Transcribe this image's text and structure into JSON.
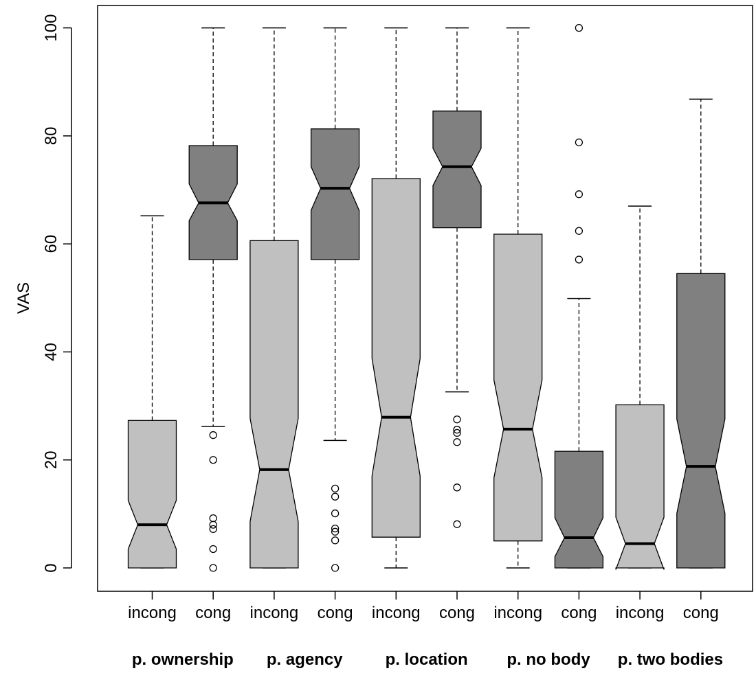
{
  "chart_data": {
    "type": "boxplot",
    "title": "",
    "xlabel": "",
    "ylabel": "VAS",
    "ylim": [
      -4,
      104
    ],
    "yticks": [
      0,
      20,
      40,
      60,
      80,
      100
    ],
    "grid": false,
    "legend": "none",
    "colors": {
      "incong": "#c0c0c0",
      "cong": "#808080"
    },
    "groups": [
      "p. ownership",
      "p. agency",
      "p. location",
      "p. no body",
      "p. two bodies"
    ],
    "boxes": [
      {
        "group": "p. ownership",
        "label": "incong",
        "condition": "incong",
        "whisker_low": 0,
        "q1": 0,
        "median": 8,
        "q3": 27.3,
        "whisker_high": 65.2,
        "notch_low": 3.5,
        "notch_high": 12.5,
        "outliers": []
      },
      {
        "group": "p. ownership",
        "label": "cong",
        "condition": "cong",
        "whisker_low": 26.2,
        "q1": 57.1,
        "median": 67.6,
        "q3": 78.2,
        "whisker_high": 100,
        "notch_low": 64.3,
        "notch_high": 71.1,
        "outliers": [
          24.6,
          20,
          9.2,
          8,
          7.2,
          3.5,
          0
        ]
      },
      {
        "group": "p. agency",
        "label": "incong",
        "condition": "incong",
        "whisker_low": 0,
        "q1": 0,
        "median": 18.2,
        "q3": 60.6,
        "whisker_high": 100,
        "notch_low": 8.6,
        "notch_high": 27.7,
        "outliers": []
      },
      {
        "group": "p. agency",
        "label": "cong",
        "condition": "cong",
        "whisker_low": 23.6,
        "q1": 57.1,
        "median": 70.3,
        "q3": 81.3,
        "whisker_high": 100,
        "notch_low": 66.2,
        "notch_high": 74.3,
        "outliers": [
          14.7,
          13.2,
          10.1,
          7.3,
          6.7,
          5.1,
          0
        ]
      },
      {
        "group": "p. location",
        "label": "incong",
        "condition": "incong",
        "whisker_low": 0,
        "q1": 5.7,
        "median": 27.9,
        "q3": 72.1,
        "whisker_high": 100,
        "notch_low": 17,
        "notch_high": 38.8,
        "outliers": []
      },
      {
        "group": "p. location",
        "label": "cong",
        "condition": "cong",
        "whisker_low": 32.6,
        "q1": 63,
        "median": 74.3,
        "q3": 84.6,
        "whisker_high": 100,
        "notch_low": 70.8,
        "notch_high": 77.7,
        "outliers": [
          27.5,
          25.6,
          25,
          23.3,
          14.9,
          8.1
        ]
      },
      {
        "group": "p. no body",
        "label": "incong",
        "condition": "incong",
        "whisker_low": 0,
        "q1": 5,
        "median": 25.7,
        "q3": 61.8,
        "whisker_high": 100,
        "notch_low": 16.7,
        "notch_high": 34.8,
        "outliers": []
      },
      {
        "group": "p. no body",
        "label": "cong",
        "condition": "cong",
        "whisker_low": 0,
        "q1": 0,
        "median": 5.6,
        "q3": 21.6,
        "whisker_high": 49.9,
        "notch_low": 2.1,
        "notch_high": 9.3,
        "outliers": [
          100,
          78.8,
          69.2,
          62.4,
          57.1
        ]
      },
      {
        "group": "p. two bodies",
        "label": "incong",
        "condition": "incong",
        "whisker_low": 0,
        "q1": 0,
        "median": 4.5,
        "q3": 30.2,
        "whisker_high": 67,
        "notch_low": -0.3,
        "notch_high": 9.4,
        "outliers": []
      },
      {
        "group": "p. two bodies",
        "label": "cong",
        "condition": "cong",
        "whisker_low": 0,
        "q1": 0,
        "median": 18.8,
        "q3": 54.5,
        "whisker_high": 86.8,
        "notch_low": 10.1,
        "notch_high": 27.6,
        "outliers": []
      }
    ]
  }
}
